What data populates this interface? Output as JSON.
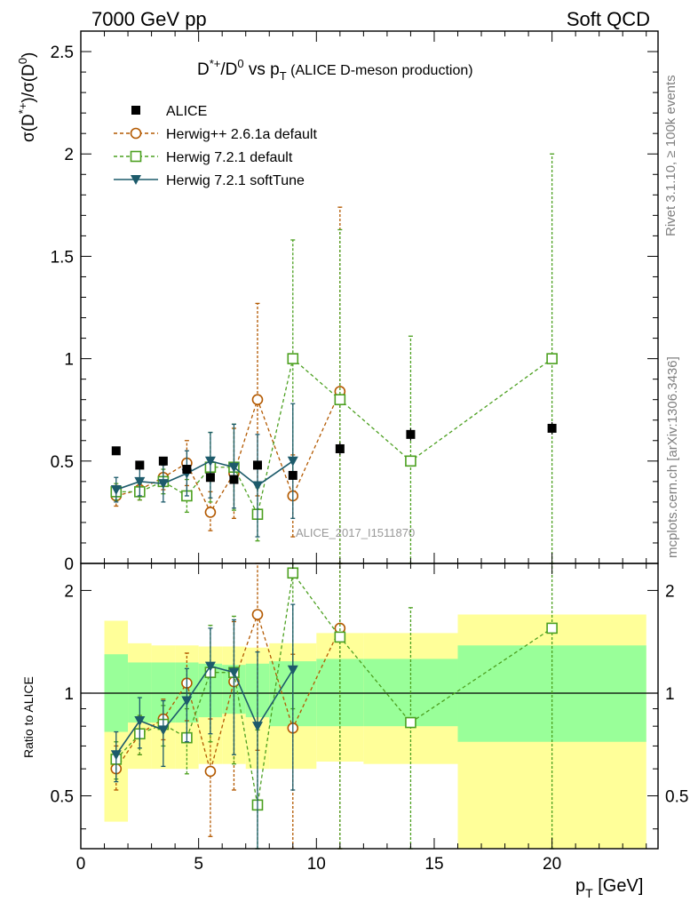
{
  "header": {
    "left": "7000 GeV pp",
    "right": "Soft QCD"
  },
  "side": {
    "rivet": "Rivet 3.1.10, ≥ 100k events",
    "mcplots": "mcplots.cern.ch [arXiv:1306.3436]"
  },
  "watermark": "ALICE_2017_I1511870",
  "colors": {
    "alice": "#000000",
    "herwigpp": "#b35900",
    "herwig721": "#4ca020",
    "softtune": "#1d5b6b",
    "band_inner": "#99ff99",
    "band_outer": "#ffff99"
  },
  "chart_data": [
    {
      "type": "scatter",
      "panel": "main",
      "title": {
        "main": "D*+/D0 vs pT",
        "sub": "(ALICE D-meson production)"
      },
      "ylabel": "σ(D*+)/σ(D0)",
      "ylim": [
        0,
        2.6
      ],
      "xlim": [
        0,
        24.5
      ],
      "yticks": [
        0,
        0.5,
        1,
        1.5,
        2,
        2.5
      ],
      "yticklabels": [
        "0",
        "0.5",
        "1",
        "1.5",
        "2",
        "2.5"
      ],
      "legend": {
        "placement": "top-left",
        "entries": [
          "ALICE",
          "Herwig++ 2.6.1a default",
          "Herwig 7.2.1 default",
          "Herwig 7.2.1 softTune"
        ]
      },
      "x": [
        1.5,
        2.5,
        3.5,
        4.5,
        5.5,
        6.5,
        7.5,
        9,
        11,
        14,
        20
      ],
      "x_bins": [
        [
          1,
          2
        ],
        [
          2,
          3
        ],
        [
          3,
          4
        ],
        [
          4,
          5
        ],
        [
          5,
          6
        ],
        [
          6,
          7
        ],
        [
          7,
          8
        ],
        [
          8,
          10
        ],
        [
          10,
          12
        ],
        [
          12,
          16
        ],
        [
          16,
          24
        ]
      ],
      "series": [
        {
          "name": "ALICE",
          "key": "alice",
          "marker": "square-filled",
          "x": [
            1.5,
            2.5,
            3.5,
            4.5,
            5.5,
            6.5,
            7.5,
            9,
            11,
            14,
            20
          ],
          "values": [
            0.55,
            0.48,
            0.5,
            0.46,
            0.42,
            0.41,
            0.48,
            0.43,
            0.56,
            0.63,
            0.66
          ],
          "err": [
            0.01,
            0.01,
            0.01,
            0.01,
            0.02,
            0.02,
            0.02,
            0.02,
            0.03,
            0.03,
            0.03
          ]
        },
        {
          "name": "Herwig++ 2.6.1a default",
          "key": "herwigpp",
          "marker": "circle-open",
          "dash": true,
          "x": [
            1.5,
            2.5,
            3.5,
            4.5,
            5.5,
            6.5,
            7.5,
            9,
            11
          ],
          "values": [
            0.33,
            0.36,
            0.42,
            0.49,
            0.25,
            0.44,
            0.8,
            0.33,
            0.84
          ],
          "lo": [
            0.28,
            0.31,
            0.36,
            0.38,
            0.16,
            0.22,
            0.33,
            0.13,
            0.0
          ],
          "hi": [
            0.38,
            0.41,
            0.48,
            0.6,
            0.35,
            0.66,
            1.27,
            0.53,
            1.74
          ]
        },
        {
          "name": "Herwig 7.2.1 default",
          "key": "herwig721",
          "marker": "square-open",
          "dash": true,
          "x": [
            1.5,
            2.5,
            3.5,
            4.5,
            5.5,
            6.5,
            7.5,
            9,
            11,
            14,
            20
          ],
          "values": [
            0.35,
            0.35,
            0.4,
            0.33,
            0.47,
            0.47,
            0.24,
            1.0,
            0.8,
            0.5,
            1.0
          ],
          "lo": [
            0.31,
            0.31,
            0.34,
            0.25,
            0.3,
            0.26,
            0.11,
            0.42,
            0.0,
            0.0,
            0.0
          ],
          "hi": [
            0.39,
            0.39,
            0.46,
            0.41,
            0.64,
            0.68,
            0.37,
            1.58,
            1.63,
            1.11,
            2.0
          ]
        },
        {
          "name": "Herwig 7.2.1 softTune",
          "key": "softtune",
          "marker": "triangle-down-filled",
          "dash": false,
          "x": [
            1.5,
            2.5,
            3.5,
            4.5,
            5.5,
            6.5,
            7.5,
            9
          ],
          "values": [
            0.36,
            0.4,
            0.39,
            0.44,
            0.5,
            0.47,
            0.38,
            0.5
          ],
          "lo": [
            0.3,
            0.33,
            0.3,
            0.33,
            0.32,
            0.27,
            0.13,
            0.22
          ],
          "hi": [
            0.42,
            0.47,
            0.48,
            0.55,
            0.64,
            0.68,
            0.63,
            0.78
          ]
        }
      ]
    },
    {
      "type": "scatter",
      "panel": "ratio",
      "ylabel": "Ratio to ALICE",
      "yscale": "log",
      "ylim": [
        0.35,
        2.4
      ],
      "xlim": [
        0,
        24.5
      ],
      "xlabel": "pT [GeV]",
      "xticks": [
        0,
        5,
        10,
        15,
        20
      ],
      "xticklabels": [
        "0",
        "5",
        "10",
        "15",
        "20"
      ],
      "yticks": [
        0.5,
        1,
        2
      ],
      "yticklabels": [
        "0.5",
        "1",
        "2"
      ],
      "bands": {
        "inner_lo": [
          0.77,
          0.82,
          0.82,
          0.82,
          0.85,
          0.87,
          0.85,
          0.8,
          0.8,
          0.8,
          0.72
        ],
        "inner_hi": [
          1.3,
          1.23,
          1.23,
          1.23,
          1.22,
          1.21,
          1.22,
          1.24,
          1.26,
          1.26,
          1.38
        ],
        "outer_lo": [
          0.42,
          0.6,
          0.6,
          0.6,
          0.62,
          0.62,
          0.6,
          0.6,
          0.63,
          0.62,
          0.34
        ],
        "outer_hi": [
          1.63,
          1.4,
          1.38,
          1.38,
          1.37,
          1.37,
          1.36,
          1.4,
          1.5,
          1.5,
          1.7
        ]
      },
      "series": [
        {
          "name": "Herwig++ 2.6.1a default",
          "key": "herwigpp",
          "marker": "circle-open",
          "dash": true,
          "x": [
            1.5,
            2.5,
            3.5,
            4.5,
            5.5,
            6.5,
            7.5,
            9,
            11
          ],
          "values": [
            0.6,
            0.76,
            0.84,
            1.07,
            0.59,
            1.08,
            1.7,
            0.79,
            1.55
          ],
          "lo": [
            0.52,
            0.66,
            0.73,
            0.83,
            0.38,
            0.52,
            0.68,
            0.3,
            0.3
          ],
          "hi": [
            0.7,
            0.86,
            0.96,
            1.31,
            0.84,
            1.62,
            2.6,
            1.3,
            2.6
          ]
        },
        {
          "name": "Herwig 7.2.1 default",
          "key": "herwig721",
          "marker": "square-open",
          "dash": true,
          "x": [
            1.5,
            2.5,
            3.5,
            4.5,
            5.5,
            6.5,
            7.5,
            9,
            11,
            14,
            20
          ],
          "values": [
            0.64,
            0.76,
            0.81,
            0.74,
            1.15,
            1.15,
            0.47,
            2.25,
            1.46,
            0.82,
            1.55
          ],
          "lo": [
            0.56,
            0.66,
            0.7,
            0.58,
            0.72,
            0.62,
            0.3,
            0.9,
            0.3,
            0.3,
            0.3
          ],
          "hi": [
            0.72,
            0.86,
            0.92,
            0.9,
            1.58,
            1.68,
            0.78,
            2.6,
            2.6,
            1.78,
            2.6
          ]
        },
        {
          "name": "Herwig 7.2.1 softTune",
          "key": "softtune",
          "marker": "triangle-down-filled",
          "dash": false,
          "x": [
            1.5,
            2.5,
            3.5,
            4.5,
            5.5,
            6.5,
            7.5,
            9
          ],
          "values": [
            0.66,
            0.83,
            0.78,
            0.95,
            1.2,
            1.15,
            0.8,
            1.17
          ],
          "lo": [
            0.55,
            0.69,
            0.61,
            0.72,
            0.76,
            0.66,
            0.28,
            0.52
          ],
          "hi": [
            0.77,
            0.97,
            0.95,
            1.18,
            1.55,
            1.64,
            1.32,
            1.82
          ]
        }
      ]
    }
  ]
}
